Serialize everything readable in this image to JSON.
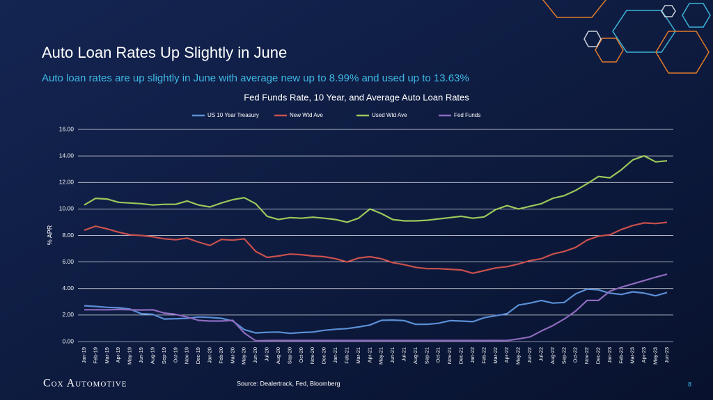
{
  "slide": {
    "title": "Auto Loan Rates Up Slightly in June",
    "subtitle": "Auto loan rates are up slightly in June with average new up to 8.99% and used up to 13.63%",
    "source": "Source: Dealertrack, Fed, Bloomberg",
    "logo": "Cox Automotive",
    "page_number": "8"
  },
  "chart_data": {
    "type": "line",
    "title": "Fed Funds Rate, 10 Year, and Average Auto Loan Rates",
    "y_label": "% APR",
    "categories": [
      "Jan-19",
      "Feb-19",
      "Mar-19",
      "Apr-19",
      "May-19",
      "Jun-19",
      "Aug-19",
      "Sep-19",
      "Oct-19",
      "Nov-19",
      "Dec-19",
      "Jan-20",
      "Feb-20",
      "Mar-20",
      "May-20",
      "Jun-20",
      "Jul-20",
      "Aug-20",
      "Sep-20",
      "Oct-20",
      "Nov-20",
      "Dec-20",
      "Jan-21",
      "Feb-21",
      "Mar-21",
      "Apr-21",
      "May-21",
      "Jun-21",
      "Jul-21",
      "Aug-21",
      "Sep-21",
      "Oct-21",
      "Nov-21",
      "Dec-21",
      "Jan-22",
      "Feb-22",
      "Mar-22",
      "Apr-22",
      "May-22",
      "Jun-22",
      "Jul-22",
      "Aug-22",
      "Sep-22",
      "Oct-22",
      "Nov-22",
      "Dec-22",
      "Jan-23",
      "Feb-23",
      "Mar-23",
      "Apr-23",
      "May-23",
      "Jun-23"
    ],
    "series": [
      {
        "name": "US 10 Year Treasury",
        "color": "#5b8fd6",
        "values": [
          2.7,
          2.65,
          2.58,
          2.55,
          2.45,
          2.1,
          2.05,
          1.7,
          1.72,
          1.75,
          1.85,
          1.82,
          1.75,
          1.55,
          0.9,
          0.65,
          0.7,
          0.72,
          0.62,
          0.68,
          0.72,
          0.85,
          0.93,
          0.98,
          1.1,
          1.25,
          1.6,
          1.62,
          1.58,
          1.3,
          1.3,
          1.38,
          1.58,
          1.55,
          1.5,
          1.8,
          1.95,
          2.1,
          2.75,
          2.9,
          3.1,
          2.9,
          2.95,
          3.6,
          3.95,
          3.9,
          3.65,
          3.55,
          3.75,
          3.65,
          3.45,
          3.7
        ]
      },
      {
        "name": "New Wtd Ave",
        "color": "#c9504c",
        "values": [
          8.4,
          8.7,
          8.5,
          8.25,
          8.05,
          8.0,
          7.9,
          7.75,
          7.68,
          7.8,
          7.5,
          7.25,
          7.7,
          7.65,
          7.75,
          6.8,
          6.35,
          6.45,
          6.6,
          6.55,
          6.45,
          6.4,
          6.25,
          6.0,
          6.3,
          6.4,
          6.25,
          5.95,
          5.8,
          5.6,
          5.5,
          5.5,
          5.45,
          5.4,
          5.15,
          5.35,
          5.55,
          5.65,
          5.85,
          6.1,
          6.25,
          6.6,
          6.8,
          7.1,
          7.65,
          7.95,
          8.05,
          8.45,
          8.75,
          8.95,
          8.9,
          8.99
        ]
      },
      {
        "name": "Used Wtd Ave",
        "color": "#9bc85a",
        "values": [
          10.3,
          10.8,
          10.75,
          10.5,
          10.45,
          10.4,
          10.3,
          10.35,
          10.35,
          10.6,
          10.3,
          10.15,
          10.45,
          10.7,
          10.85,
          10.4,
          9.45,
          9.2,
          9.35,
          9.3,
          9.38,
          9.3,
          9.2,
          9.0,
          9.3,
          10.0,
          9.65,
          9.2,
          9.1,
          9.1,
          9.15,
          9.25,
          9.35,
          9.45,
          9.3,
          9.4,
          9.95,
          10.25,
          10.0,
          10.2,
          10.4,
          10.8,
          11.0,
          11.4,
          11.9,
          12.45,
          12.35,
          12.95,
          13.7,
          14.0,
          13.55,
          13.63
        ]
      },
      {
        "name": "Fed Funds",
        "color": "#8e6bbf",
        "values": [
          2.4,
          2.4,
          2.4,
          2.42,
          2.4,
          2.38,
          2.4,
          2.15,
          2.05,
          1.85,
          1.6,
          1.55,
          1.55,
          1.6,
          0.65,
          0.05,
          0.08,
          0.08,
          0.08,
          0.08,
          0.08,
          0.08,
          0.08,
          0.08,
          0.08,
          0.08,
          0.08,
          0.08,
          0.08,
          0.08,
          0.08,
          0.08,
          0.08,
          0.08,
          0.08,
          0.08,
          0.08,
          0.08,
          0.2,
          0.35,
          0.8,
          1.2,
          1.7,
          2.3,
          3.1,
          3.1,
          3.8,
          4.1,
          4.35,
          4.6,
          4.85,
          5.08
        ]
      }
    ],
    "ylim": [
      0,
      16
    ],
    "yticks": [
      {
        "value": 0,
        "label": "0.00"
      },
      {
        "value": 2,
        "label": "2.00"
      },
      {
        "value": 4,
        "label": "4.00"
      },
      {
        "value": 6,
        "label": "6.00"
      },
      {
        "value": 8,
        "label": "8.00"
      },
      {
        "value": 10,
        "label": "10.00"
      },
      {
        "value": 12,
        "label": "12.00"
      },
      {
        "value": 14,
        "label": "14.00"
      },
      {
        "value": 16,
        "label": "16.00"
      }
    ],
    "grid": true,
    "legend": "top"
  }
}
